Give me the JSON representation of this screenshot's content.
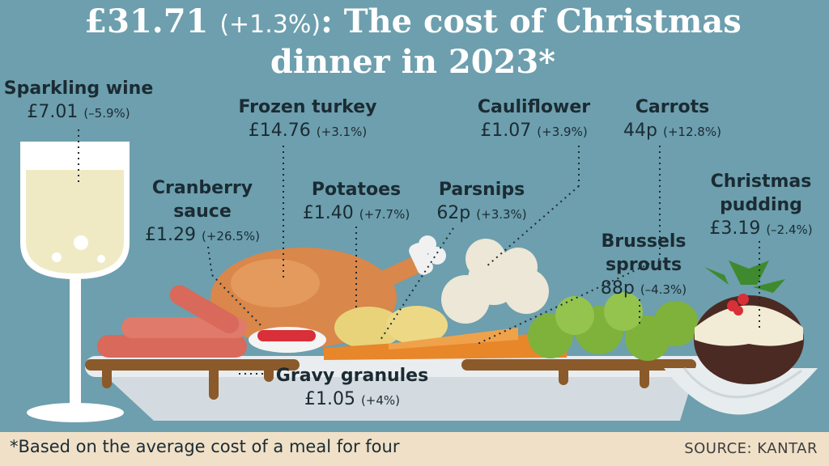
{
  "title": {
    "total": "£31.71",
    "change": "(+1.3%)",
    "text": ": The cost of Christmas",
    "line2": "dinner in 2023*"
  },
  "items": {
    "sparkling_wine": {
      "name": "Sparkling wine",
      "price": "£7.01",
      "change": "(–5.9%)"
    },
    "frozen_turkey": {
      "name": "Frozen turkey",
      "price": "£14.76",
      "change": "(+3.1%)"
    },
    "cauliflower": {
      "name": "Cauliflower",
      "price": "£1.07",
      "change": "(+3.9%)"
    },
    "carrots": {
      "name": "Carrots",
      "price": "44p",
      "change": "(+12.8%)"
    },
    "cranberry_sauce": {
      "name_line1": "Cranberry",
      "name_line2": "sauce",
      "price": "£1.29",
      "change": "(+26.5%)"
    },
    "potatoes": {
      "name": "Potatoes",
      "price": "£1.40",
      "change": "(+7.7%)"
    },
    "parsnips": {
      "name": "Parsnips",
      "price": "62p",
      "change": "(+3.3%)"
    },
    "christmas_pudding": {
      "name_line1": "Christmas",
      "name_line2": "pudding",
      "price": "£3.19",
      "change": "(–2.4%)"
    },
    "brussels_sprouts": {
      "name_line1": "Brussels",
      "name_line2": "sprouts",
      "price": "88p",
      "change": "(–4.3%)"
    },
    "gravy_granules": {
      "name": "Gravy granules",
      "price": "£1.05",
      "change": "(+4%)"
    }
  },
  "footer": {
    "footnote": "*Based on the average cost of a meal for four",
    "source": "SOURCE: KANTAR"
  },
  "colors": {
    "background": "#6d9fae",
    "text": "#1b2b33",
    "footer_bg": "#efe0c7",
    "wine": "#efeac4",
    "turkey": "#d9874a",
    "sprouts": "#7fb23a",
    "carrot": "#e8862a",
    "gravy": "#8a5a2b"
  }
}
